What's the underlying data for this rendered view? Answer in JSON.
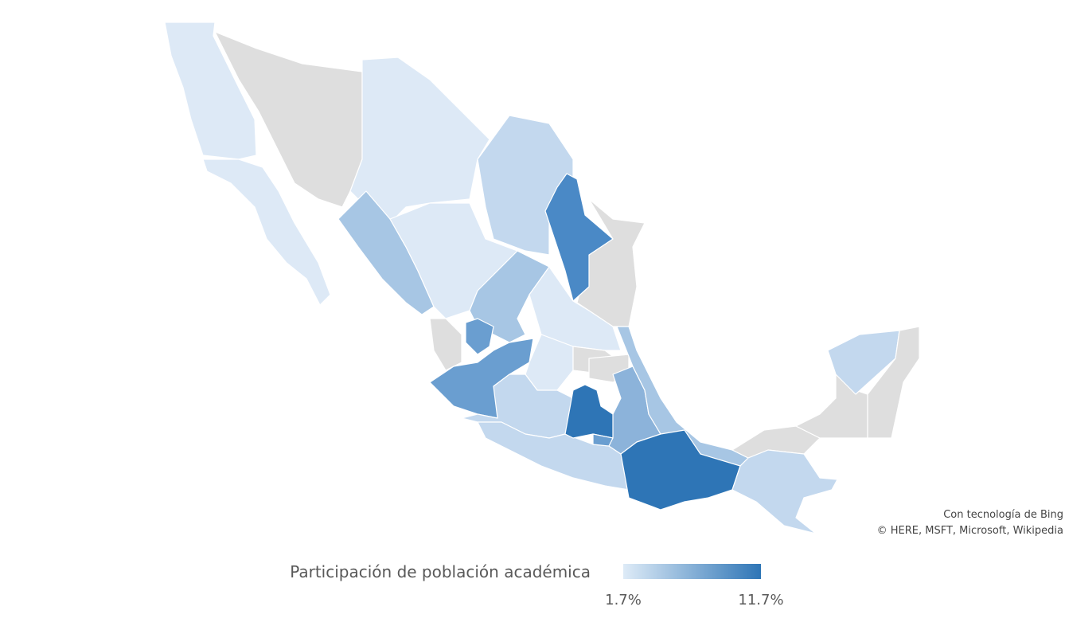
{
  "legend": {
    "title": "Participación de población académica",
    "min": {
      "value": 1.7,
      "label": "1.7%"
    },
    "max": {
      "value": 11.7,
      "label": "11.7%"
    },
    "colors": [
      "#deebf7",
      "#2e75b6"
    ]
  },
  "attribution": [
    "Con tecnología de Bing",
    "© HERE, MSFT, Microsoft, Wikipedia"
  ]
}
